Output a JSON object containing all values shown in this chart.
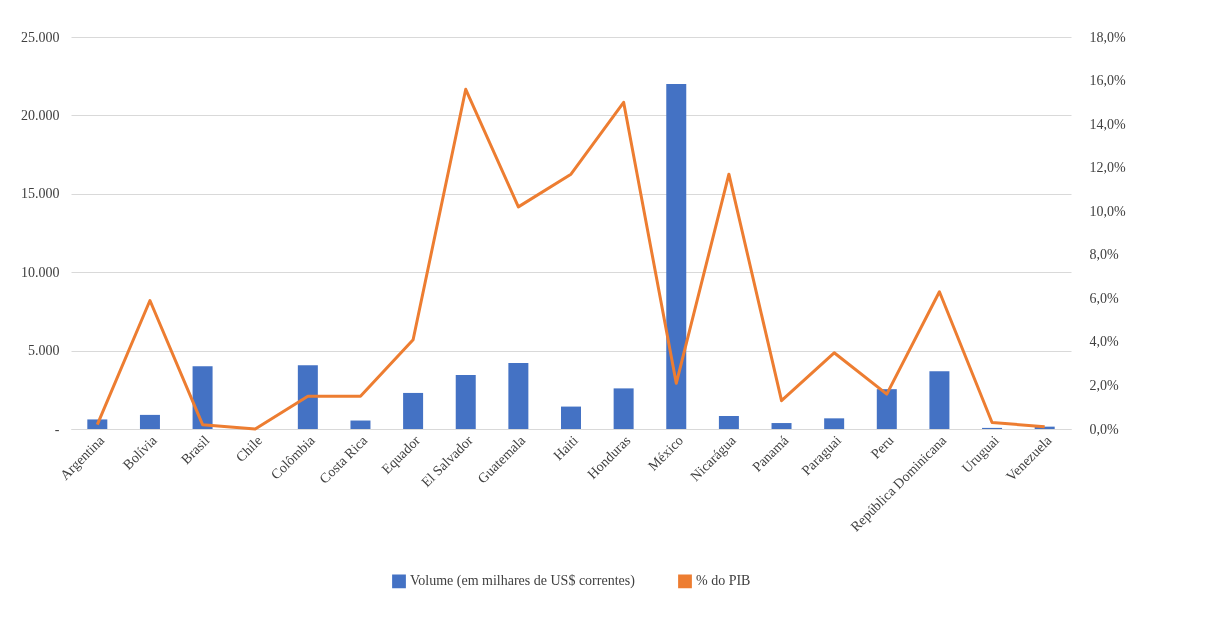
{
  "chart_data": {
    "type": "bar",
    "categories": [
      "Argentina",
      "Bolívia",
      "Brasil",
      "Chile",
      "Colômbia",
      "Costa Rica",
      "Equador",
      "El Salvador",
      "Guatemala",
      "Haiti",
      "Honduras",
      "México",
      "Nicarágua",
      "Panamá",
      "Paraguai",
      "Peru",
      "República Dominicana",
      "Uruguai",
      "Venezuela"
    ],
    "series": [
      {
        "name": "Volume (em milhares de US$ correntes)",
        "color": "#4472c4",
        "values": [
          610,
          900,
          4000,
          0,
          4060,
          540,
          2300,
          3450,
          4210,
          1430,
          2590,
          22000,
          830,
          380,
          680,
          2540,
          3680,
          70,
          150
        ]
      },
      {
        "name": "% do PIB",
        "type": "line",
        "axis": "y2",
        "color": "#ed7d31",
        "values": [
          0.2,
          5.9,
          0.2,
          0.0,
          1.5,
          1.5,
          4.1,
          15.6,
          10.2,
          11.7,
          15.0,
          2.1,
          11.7,
          1.3,
          3.5,
          1.6,
          6.3,
          0.3,
          0.1
        ]
      }
    ],
    "ylim": [
      0,
      25000
    ],
    "yticks": [
      {
        "value": 0,
        "label": "-"
      },
      {
        "value": 5000,
        "label": "5.000"
      },
      {
        "value": 10000,
        "label": "10.000"
      },
      {
        "value": 15000,
        "label": "15.000"
      },
      {
        "value": 20000,
        "label": "20.000"
      },
      {
        "value": 25000,
        "label": "25.000"
      }
    ],
    "y2lim": [
      0,
      18
    ],
    "y2ticks": [
      {
        "value": 0,
        "label": "0,0%"
      },
      {
        "value": 2,
        "label": "2,0%"
      },
      {
        "value": 4,
        "label": "4,0%"
      },
      {
        "value": 6,
        "label": "6,0%"
      },
      {
        "value": 8,
        "label": "8,0%"
      },
      {
        "value": 10,
        "label": "10,0%"
      },
      {
        "value": 12,
        "label": "12,0%"
      },
      {
        "value": 14,
        "label": "14,0%"
      },
      {
        "value": 16,
        "label": "16,0%"
      },
      {
        "value": 18,
        "label": "18,0%"
      }
    ],
    "grid": "y",
    "legend": "bottom"
  }
}
